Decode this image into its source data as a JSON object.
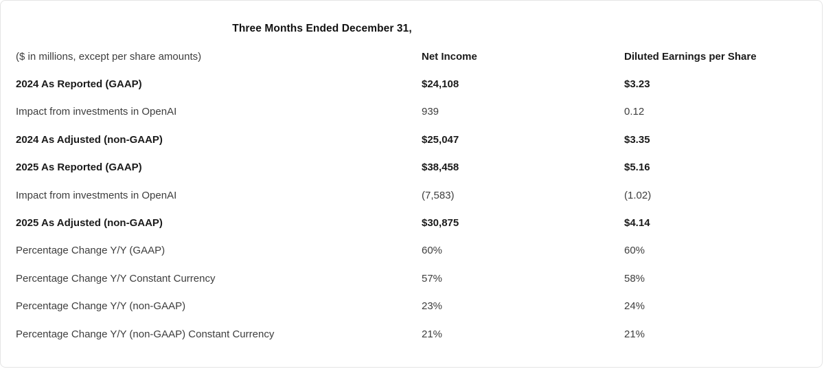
{
  "page": {
    "title": "Three Months Ended December 31,",
    "units_note": "($ in millions, except per share amounts)"
  },
  "table": {
    "columns": [
      "Net Income",
      "Diluted Earnings per Share"
    ],
    "rows": [
      {
        "label": "2024 As Reported (GAAP)",
        "net_income": "$24,108",
        "diluted_eps": "$3.23",
        "bold": true
      },
      {
        "label": "Impact from investments in OpenAI",
        "net_income": "939",
        "diluted_eps": "0.12",
        "bold": false
      },
      {
        "label": "2024 As Adjusted (non-GAAP)",
        "net_income": "$25,047",
        "diluted_eps": "$3.35",
        "bold": true
      },
      {
        "label": "2025 As Reported (GAAP)",
        "net_income": "$38,458",
        "diluted_eps": "$5.16",
        "bold": true
      },
      {
        "label": "Impact from investments in OpenAI",
        "net_income": "(7,583)",
        "diluted_eps": "(1.02)",
        "bold": false
      },
      {
        "label": "2025 As Adjusted (non-GAAP)",
        "net_income": "$30,875",
        "diluted_eps": "$4.14",
        "bold": true
      },
      {
        "label": "Percentage Change Y/Y (GAAP)",
        "net_income": "60%",
        "diluted_eps": "60%",
        "bold": false
      },
      {
        "label": "Percentage Change Y/Y Constant Currency",
        "net_income": "57%",
        "diluted_eps": "58%",
        "bold": false
      },
      {
        "label": "Percentage Change Y/Y (non-GAAP)",
        "net_income": "23%",
        "diluted_eps": "24%",
        "bold": false
      },
      {
        "label": "Percentage Change Y/Y (non-GAAP) Constant Currency",
        "net_income": "21%",
        "diluted_eps": "21%",
        "bold": false
      }
    ]
  },
  "colors": {
    "text_regular": "#3d3d3d",
    "text_bold": "#1a1a1a",
    "page_border": "#e4e4e4",
    "background": "#ffffff"
  }
}
